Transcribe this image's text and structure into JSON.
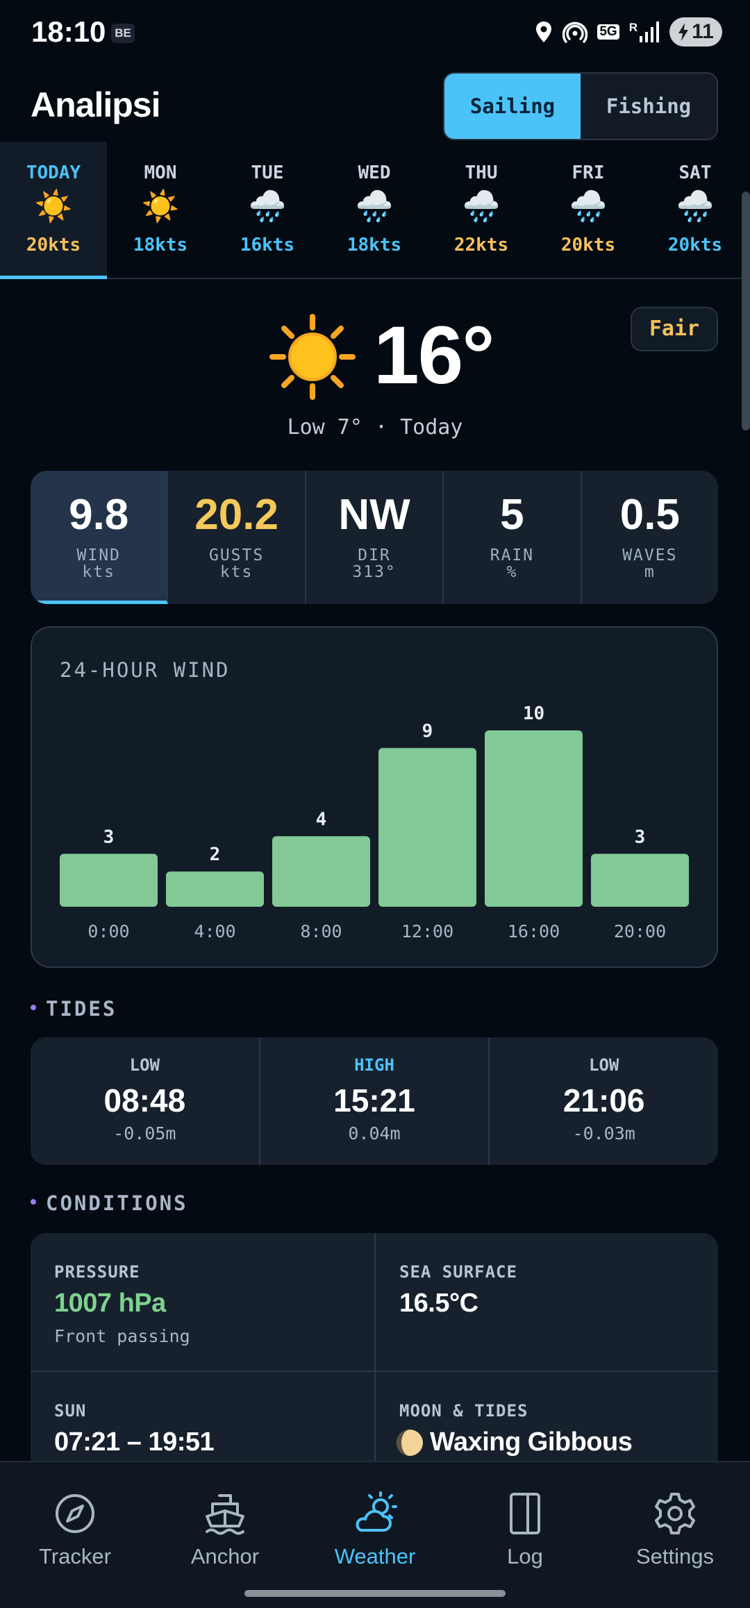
{
  "status_bar": {
    "time": "18:10",
    "badge": "BE",
    "network": "5G",
    "roaming": "R",
    "battery": "11"
  },
  "header": {
    "title": "Analipsi"
  },
  "mode_toggle": {
    "options": [
      "Sailing",
      "Fishing"
    ],
    "selected": "Sailing"
  },
  "days": [
    {
      "name": "TODAY",
      "icon": "sun-icon",
      "wind": "20kts",
      "wind_color": "#f5c15a"
    },
    {
      "name": "MON",
      "icon": "sun-icon",
      "wind": "18kts",
      "wind_color": "#4cc3f8"
    },
    {
      "name": "TUE",
      "icon": "rain-cloud-icon",
      "wind": "16kts",
      "wind_color": "#4cc3f8"
    },
    {
      "name": "WED",
      "icon": "rain-cloud-icon",
      "wind": "18kts",
      "wind_color": "#4cc3f8"
    },
    {
      "name": "THU",
      "icon": "rain-cloud-icon",
      "wind": "22kts",
      "wind_color": "#f5c15a"
    },
    {
      "name": "FRI",
      "icon": "rain-cloud-icon",
      "wind": "20kts",
      "wind_color": "#f5c15a"
    },
    {
      "name": "SAT",
      "icon": "rain-cloud-icon",
      "wind": "20kts",
      "wind_color": "#4cc3f8"
    }
  ],
  "current": {
    "temp": "16°",
    "subtitle": "Low 7° · Today",
    "rating": "Fair"
  },
  "metrics": [
    {
      "value": "9.8",
      "label": "WIND",
      "unit": "kts",
      "color": "#ffffff"
    },
    {
      "value": "20.2",
      "label": "GUSTS",
      "unit": "kts",
      "color": "#f5c95a"
    },
    {
      "value": "NW",
      "label": "DIR",
      "unit": "313°",
      "color": "#ffffff"
    },
    {
      "value": "5",
      "label": "RAIN",
      "unit": "%",
      "color": "#ffffff"
    },
    {
      "value": "0.5",
      "label": "WAVES",
      "unit": "m",
      "color": "#ffffff"
    }
  ],
  "wind_chart": {
    "title": "24-HOUR WIND",
    "chart_data": {
      "type": "bar",
      "categories": [
        "0:00",
        "4:00",
        "8:00",
        "12:00",
        "16:00",
        "20:00"
      ],
      "values": [
        3,
        2,
        4,
        9,
        10,
        3
      ],
      "ylim": [
        0,
        10
      ],
      "bar_color": "#82c995",
      "grid": false
    }
  },
  "tides": {
    "heading": "TIDES",
    "items": [
      {
        "kind": "LOW",
        "time": "08:48",
        "height": "-0.05m"
      },
      {
        "kind": "HIGH",
        "time": "15:21",
        "height": "0.04m"
      },
      {
        "kind": "LOW",
        "time": "21:06",
        "height": "-0.03m"
      }
    ]
  },
  "conditions": {
    "heading": "CONDITIONS",
    "pressure": {
      "label": "PRESSURE",
      "value": "1007 hPa",
      "note": "Front passing"
    },
    "sea_surface": {
      "label": "SEA SURFACE",
      "value": "16.5°C"
    },
    "sun": {
      "label": "SUN",
      "value": "07:21 – 19:51"
    },
    "moon": {
      "label": "MOON & TIDES",
      "value": "Waxing Gibbous",
      "icon": "moon-waxing-gibbous-icon"
    }
  },
  "bottom_nav": {
    "items": [
      {
        "label": "Tracker",
        "icon": "compass-icon"
      },
      {
        "label": "Anchor",
        "icon": "boat-icon"
      },
      {
        "label": "Weather",
        "icon": "weather-icon"
      },
      {
        "label": "Log",
        "icon": "book-icon"
      },
      {
        "label": "Settings",
        "icon": "gear-icon"
      }
    ],
    "active": "Weather"
  }
}
